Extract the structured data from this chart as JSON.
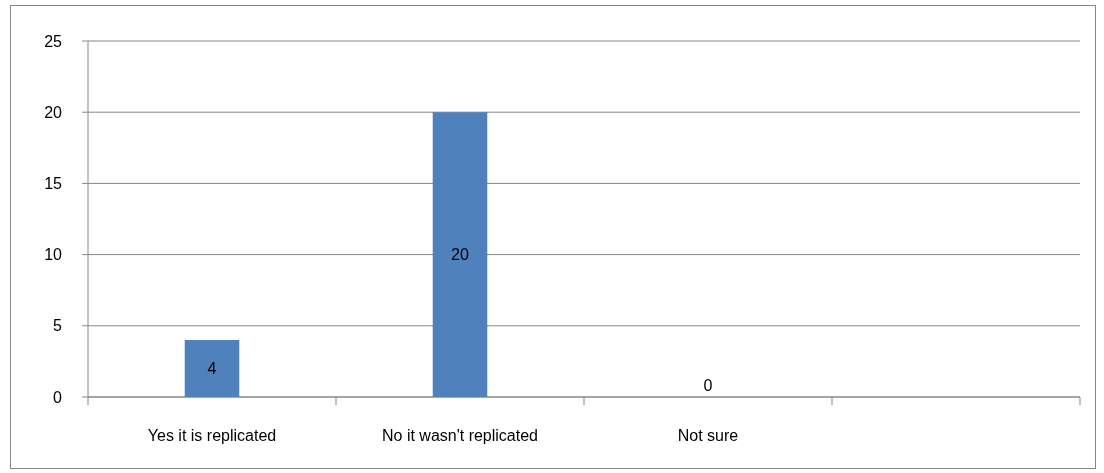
{
  "chart_data": {
    "type": "bar",
    "categories": [
      "Yes it is replicated",
      "No it wasn't replicated",
      "Not sure",
      null
    ],
    "values": [
      4,
      20,
      0,
      null
    ],
    "color": "#4f81bd",
    "ylim": [
      0,
      25
    ],
    "yticks": [
      0,
      5,
      10,
      15,
      20,
      25
    ],
    "grid": "y",
    "data_labels": true
  }
}
